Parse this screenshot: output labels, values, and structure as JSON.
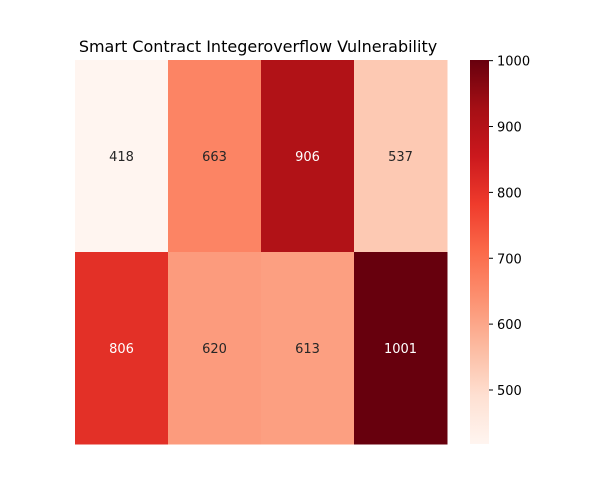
{
  "chart_data": {
    "type": "heatmap",
    "title": "Smart Contract Integeroverflow Vulnerability",
    "rows": 2,
    "cols": 4,
    "values": [
      [
        418,
        663,
        906,
        537
      ],
      [
        806,
        620,
        613,
        1001
      ]
    ],
    "xlabel": "",
    "ylabel": "",
    "xticklabels": [],
    "yticklabels": [],
    "colormap": "Reds",
    "vmin": 418,
    "vmax": 1001,
    "colorbar": {
      "ticks": [
        500,
        600,
        700,
        800,
        900,
        1000
      ],
      "tick_labels": [
        "500",
        "600",
        "700",
        "800",
        "900",
        "1000"
      ]
    },
    "grid": false
  },
  "colors": {
    "reds_stops": [
      "#fff5f0",
      "#fee0d2",
      "#fcbba1",
      "#fc9272",
      "#fb6a4a",
      "#ef3b2c",
      "#cb181d",
      "#a50f15",
      "#67000d"
    ],
    "label_dark": "#262626",
    "label_light": "#ffffff"
  }
}
